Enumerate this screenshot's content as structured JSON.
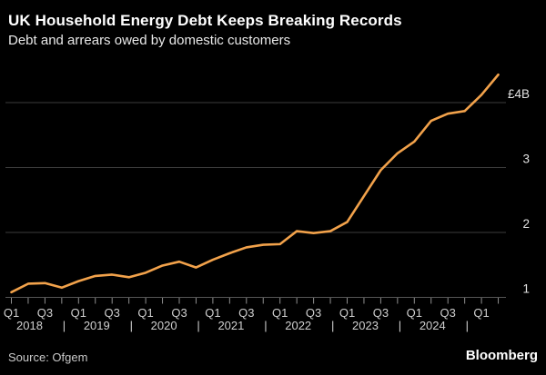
{
  "header": {
    "title": "UK Household Energy Debt Keeps Breaking Records",
    "subtitle": "Debt and arrears owed by domestic customers"
  },
  "footer": {
    "source": "Source: Ofgem",
    "brand": "Bloomberg"
  },
  "colors": {
    "background": "#000000",
    "line": "#F2A24B",
    "grid": "#3c3c3c",
    "axis": "#555555",
    "tick": "#8f8f8f",
    "y_label": "#e2e2e2",
    "x_label": "#cfcfcf",
    "title": "#ffffff",
    "subtitle": "#e9e9e9"
  },
  "chart_data": {
    "type": "line",
    "title": "UK Household Energy Debt Keeps Breaking Records",
    "subtitle": "Debt and arrears owed by domestic customers",
    "unit": "GBP billions",
    "grid": true,
    "legend_position": "none",
    "y_axis_side": "right",
    "ylim": [
      1,
      4.5
    ],
    "yticks": [
      {
        "value": 1,
        "label": "1"
      },
      {
        "value": 2,
        "label": "2"
      },
      {
        "value": 3,
        "label": "3"
      },
      {
        "value": 4,
        "label": "£4B"
      }
    ],
    "x_years": [
      "2018",
      "2019",
      "2020",
      "2021",
      "2022",
      "2023",
      "2024"
    ],
    "quarter_label_pair": [
      "Q1",
      "Q3"
    ],
    "extra_final_quarter_label": "Q1",
    "x": [
      "Q1 2018",
      "Q2 2018",
      "Q3 2018",
      "Q4 2018",
      "Q1 2019",
      "Q2 2019",
      "Q3 2019",
      "Q4 2019",
      "Q1 2020",
      "Q2 2020",
      "Q3 2020",
      "Q4 2020",
      "Q1 2021",
      "Q2 2021",
      "Q3 2021",
      "Q4 2021",
      "Q1 2022",
      "Q2 2022",
      "Q3 2022",
      "Q4 2022",
      "Q1 2023",
      "Q2 2023",
      "Q3 2023",
      "Q4 2023",
      "Q1 2024",
      "Q2 2024",
      "Q3 2024",
      "Q4 2024",
      "Q1 2025",
      "Q2 2025"
    ],
    "values": [
      1.08,
      1.21,
      1.22,
      1.15,
      1.25,
      1.33,
      1.35,
      1.31,
      1.38,
      1.49,
      1.55,
      1.46,
      1.58,
      1.68,
      1.77,
      1.81,
      1.82,
      2.02,
      1.99,
      2.02,
      2.16,
      2.56,
      2.96,
      3.22,
      3.4,
      3.72,
      3.83,
      3.87,
      4.12,
      4.43
    ]
  }
}
